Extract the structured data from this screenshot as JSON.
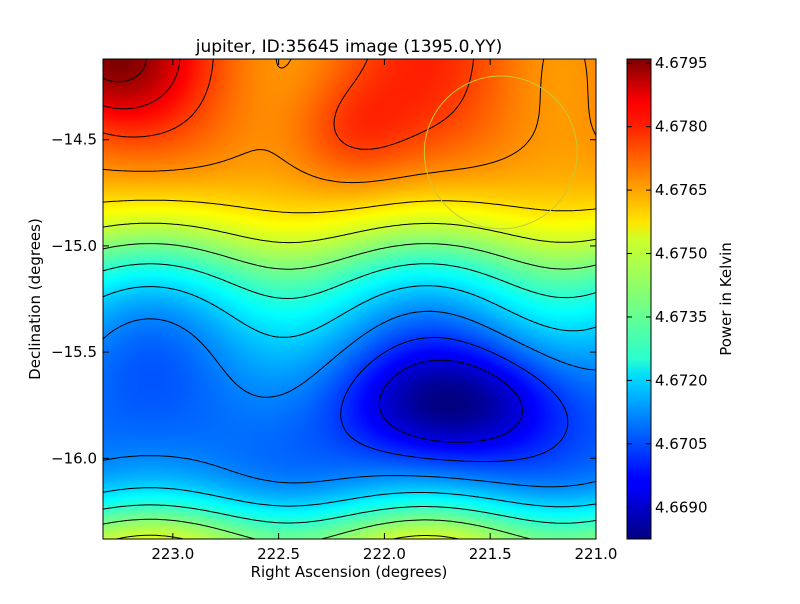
{
  "chart_data": {
    "type": "heatmap",
    "title": "jupiter, ID:35645 image (1395.0,YY)",
    "xlabel": "Right Ascension (degrees)",
    "ylabel": "Declination (degrees)",
    "colorbar_label": "Power in Kelvin",
    "xlim": [
      223.33,
      221.0
    ],
    "ylim": [
      -16.38,
      -14.12
    ],
    "x_ticks": [
      {
        "value": 223.0,
        "label": "223.0"
      },
      {
        "value": 222.5,
        "label": "222.5"
      },
      {
        "value": 222.0,
        "label": "222.0"
      },
      {
        "value": 221.5,
        "label": "221.5"
      },
      {
        "value": 221.0,
        "label": "221.0"
      }
    ],
    "y_ticks": [
      {
        "value": -14.5,
        "label": "−14.5"
      },
      {
        "value": -15.0,
        "label": "−15.0"
      },
      {
        "value": -15.5,
        "label": "−15.5"
      },
      {
        "value": -16.0,
        "label": "−16.0"
      }
    ],
    "colorbar": {
      "colormap": "jet",
      "range": [
        4.66825,
        4.6796
      ],
      "ticks": [
        {
          "value": 4.669,
          "label": "4.6690"
        },
        {
          "value": 4.6705,
          "label": "4.6705"
        },
        {
          "value": 4.672,
          "label": "4.6720"
        },
        {
          "value": 4.6735,
          "label": "4.6735"
        },
        {
          "value": 4.675,
          "label": "4.6750"
        },
        {
          "value": 4.6765,
          "label": "4.6765"
        },
        {
          "value": 4.678,
          "label": "4.6780"
        },
        {
          "value": 4.6795,
          "label": "4.6795"
        }
      ]
    },
    "field_features": [
      {
        "kind": "max",
        "ra": 223.3,
        "dec": -14.15,
        "value": 4.6795
      },
      {
        "kind": "min",
        "ra": 221.65,
        "dec": -15.72,
        "value": 4.6685
      }
    ],
    "contour_levels": [
      4.66935,
      4.67025,
      4.67115,
      4.67205,
      4.67295,
      4.67385,
      4.67475,
      4.67565,
      4.67655,
      4.67745,
      4.67835,
      4.67925
    ],
    "source_marker": {
      "ra": 221.45,
      "dec": -14.56,
      "radius_deg": 0.36,
      "color": "#c8c832"
    },
    "grid": false
  }
}
